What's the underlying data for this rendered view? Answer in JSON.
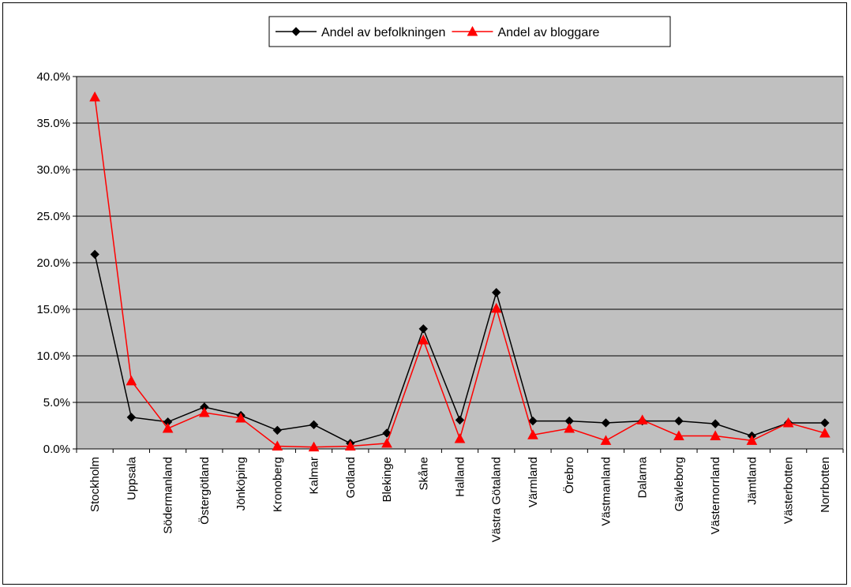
{
  "chart_data": {
    "type": "line",
    "categories": [
      "Stockholm",
      "Uppsala",
      "Södermanland",
      "Östergötland",
      "Jönköping",
      "Kronoberg",
      "Kalmar",
      "Gotland",
      "Blekinge",
      "Skåne",
      "Halland",
      "Västra Götaland",
      "Värmland",
      "Örebro",
      "Västmanland",
      "Dalarna",
      "Gävleborg",
      "Västernorrland",
      "Jämtland",
      "Västerbotten",
      "Norrbotten"
    ],
    "series": [
      {
        "name": "Andel av befolkningen",
        "color": "#000000",
        "marker": "diamond",
        "values": [
          20.9,
          3.4,
          2.9,
          4.5,
          3.6,
          2.0,
          2.6,
          0.6,
          1.7,
          12.9,
          3.1,
          16.8,
          3.0,
          3.0,
          2.8,
          3.0,
          3.0,
          2.7,
          1.4,
          2.8,
          2.8
        ]
      },
      {
        "name": "Andel av bloggare",
        "color": "#ff0000",
        "marker": "triangle",
        "values": [
          37.8,
          7.3,
          2.2,
          3.9,
          3.3,
          0.3,
          0.2,
          0.3,
          0.6,
          11.7,
          1.1,
          15.1,
          1.5,
          2.2,
          0.9,
          3.1,
          1.4,
          1.4,
          0.9,
          2.8,
          1.7
        ]
      }
    ],
    "yticks": [
      "0.0%",
      "5.0%",
      "10.0%",
      "15.0%",
      "20.0%",
      "25.0%",
      "30.0%",
      "35.0%",
      "40.0%"
    ],
    "ylim": [
      0,
      40
    ],
    "plot_background": "#c0c0c0",
    "grid": true,
    "legend_position": "top-center"
  }
}
